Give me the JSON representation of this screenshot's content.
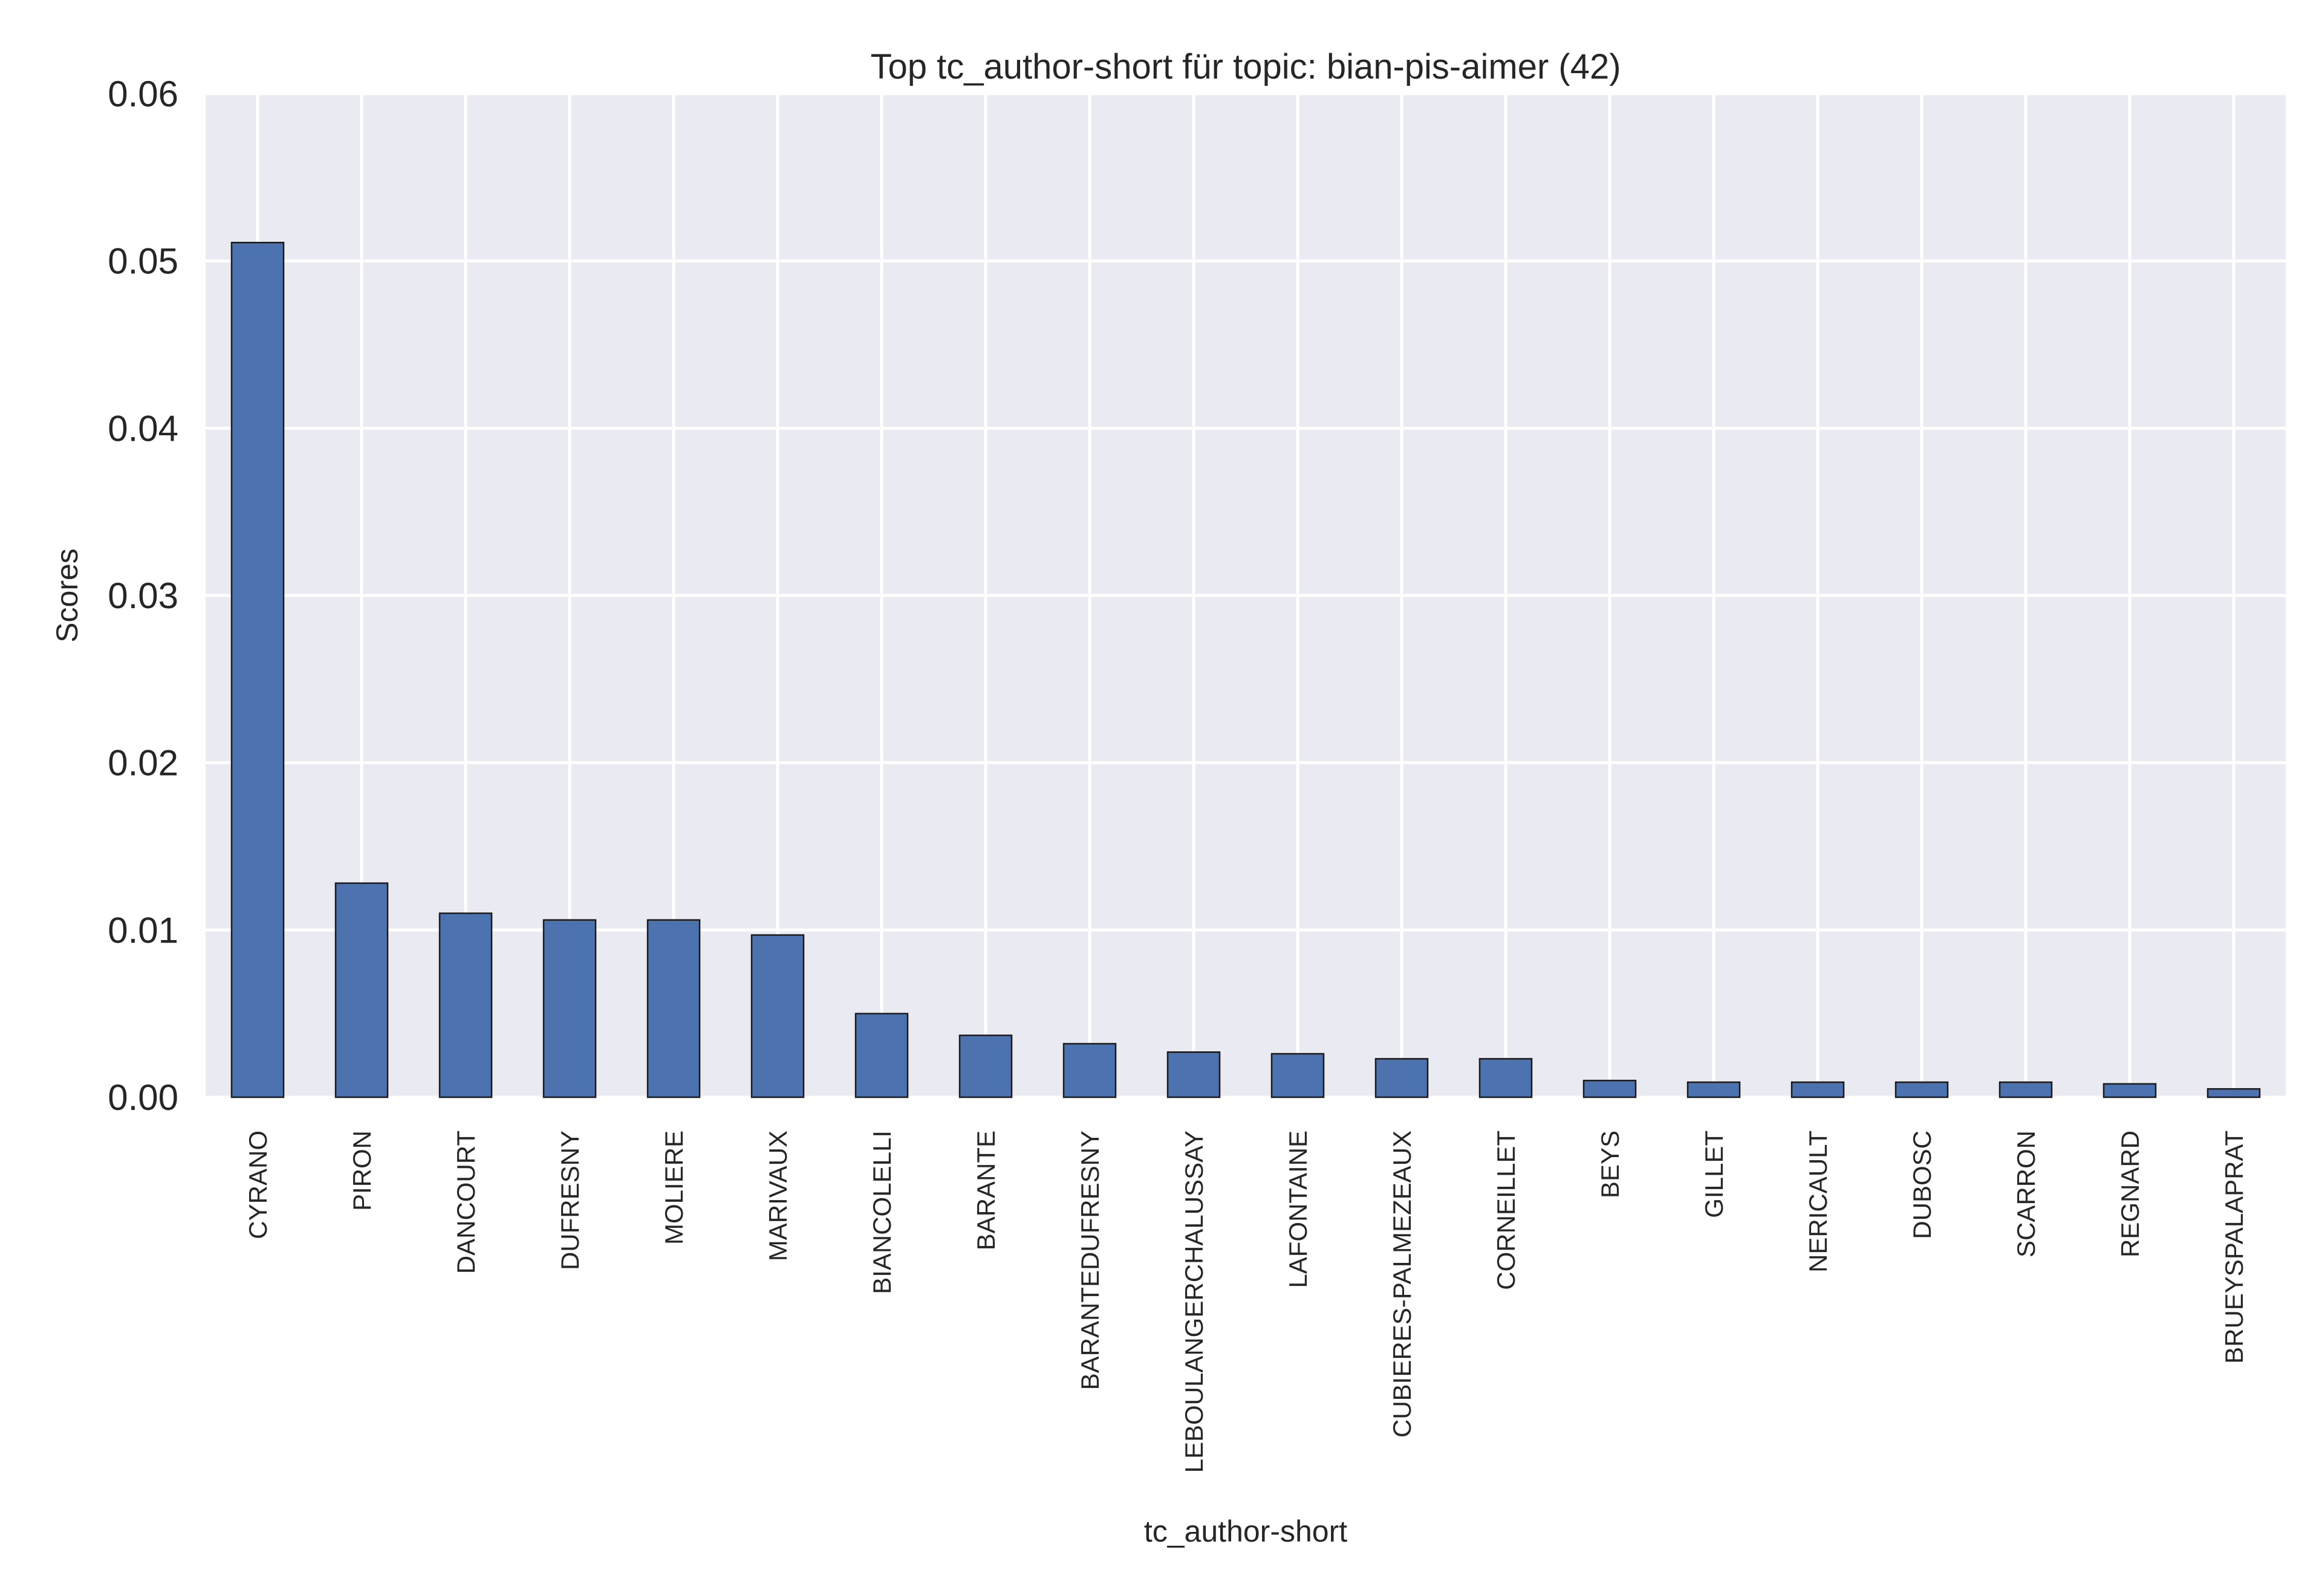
{
  "chart_data": {
    "type": "bar",
    "title": "Top tc_author-short für topic: bian-pis-aimer (42)",
    "xlabel": "tc_author-short",
    "ylabel": "Scores",
    "ylim": [
      0,
      0.06
    ],
    "yticks": [
      "0.00",
      "0.01",
      "0.02",
      "0.03",
      "0.04",
      "0.05",
      "0.06"
    ],
    "grid": true,
    "legend": "none",
    "bar_color": "#4c72b0",
    "background_color": "#eaeaf2",
    "categories": [
      "CYRANO",
      "PIRON",
      "DANCOURT",
      "DUFRESNY",
      "MOLIERE",
      "MARIVAUX",
      "BIANCOLELLI",
      "BARANTE",
      "BARANTEDUFRESNY",
      "LEBOULANGERCHALUSSAY",
      "LAFONTAINE",
      "CUBIERES-PALMEZEAUX",
      "CORNEILLET",
      "BEYS",
      "GILLET",
      "NERICAULT",
      "DUBOSC",
      "SCARRON",
      "REGNARD",
      "BRUEYSPALAPRAT"
    ],
    "values": [
      0.0511,
      0.0128,
      0.011,
      0.0106,
      0.0106,
      0.0097,
      0.005,
      0.0037,
      0.0032,
      0.0027,
      0.0026,
      0.0023,
      0.0023,
      0.001,
      0.0009,
      0.0009,
      0.0009,
      0.0009,
      0.0008,
      0.0005
    ]
  }
}
